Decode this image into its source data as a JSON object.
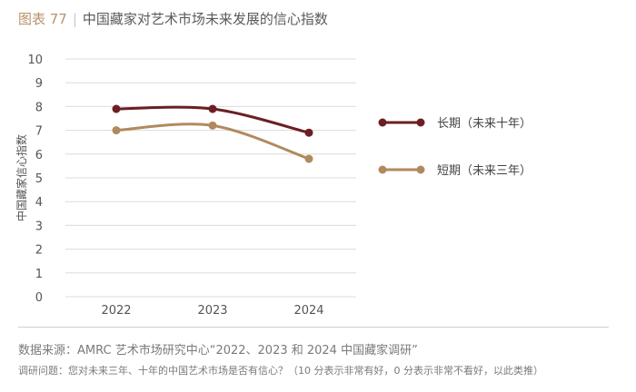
{
  "header": {
    "fig_label": "图表 77",
    "title": "中国藏家对艺术市场未来发展的信心指数"
  },
  "chart_data": {
    "type": "line",
    "x": [
      "2022",
      "2023",
      "2024"
    ],
    "ylabel": "中国藏家信心指数",
    "ylim": [
      0,
      10
    ],
    "yticks": [
      0,
      1,
      2,
      3,
      4,
      5,
      6,
      7,
      8,
      9,
      10
    ],
    "grid": true,
    "legend_position": "right",
    "series": [
      {
        "name": "长期（未来十年）",
        "color": "#6b1f24",
        "values": [
          7.9,
          7.9,
          6.9
        ]
      },
      {
        "name": "短期（未来三年）",
        "color": "#b08a5e",
        "values": [
          7.0,
          7.2,
          5.8
        ]
      }
    ]
  },
  "footer": {
    "source": "数据来源：AMRC 艺术市场研究中心“2022、2023 和 2024 中国藏家调研”",
    "question": "调研问题：您对未来三年、十年的中国艺术市场是否有信心？（10 分表示非常有好，0 分表示非常不看好，以此类推）"
  }
}
